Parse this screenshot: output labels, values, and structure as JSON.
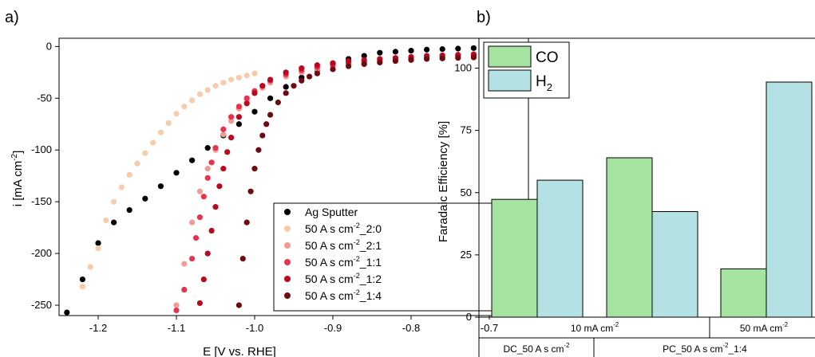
{
  "panels": {
    "a": {
      "panel_label": "a)",
      "legend_entries": [
        "Ag Sputter",
        "50 A s cm-2_2:0",
        "50 A s cm-2_2:1",
        "50 A s cm-2_1:1",
        "50 A s cm-2_1:2",
        "50 A s cm-2_1:4"
      ]
    },
    "b": {
      "panel_label": "b)",
      "group_row1": [
        "10 mA cm-2",
        "50 mA cm-2"
      ],
      "group_row2": [
        "DC_50 A s cm-2",
        "PC_50 A s cm-2_1:4"
      ]
    }
  },
  "chart_data": [
    {
      "type": "scatter",
      "xlabel": "E [V vs. RHE]",
      "ylabel": "i [mA cm-2]",
      "xlim": [
        -1.25,
        -0.65
      ],
      "ylim": [
        -260,
        8
      ],
      "x_ticks": [
        -1.2,
        -1.1,
        -1.0,
        -0.9,
        -0.8,
        -0.7
      ],
      "x_tick_labels": [
        "-1.2",
        "-1.1",
        "-1.0",
        "-0.9",
        "-0.8",
        "-0.7"
      ],
      "y_ticks": [
        0,
        -50,
        -100,
        -150,
        -200,
        -250
      ],
      "y_tick_labels": [
        "0",
        "-50",
        "-100",
        "-150",
        "-200",
        "-250"
      ],
      "legend_position": "bottom-right",
      "series": [
        {
          "name": "Ag Sputter",
          "color": "#000000",
          "x": [
            -1.24,
            -1.22,
            -1.2,
            -1.18,
            -1.16,
            -1.14,
            -1.12,
            -1.1,
            -1.08,
            -1.06,
            -1.04,
            -1.02,
            -1.0,
            -0.98,
            -0.96,
            -0.94,
            -0.92,
            -0.9,
            -0.88,
            -0.86,
            -0.84,
            -0.82,
            -0.8,
            -0.78,
            -0.76,
            -0.74,
            -0.72,
            -0.7,
            -0.68,
            -0.66
          ],
          "y": [
            -257,
            -225,
            -190,
            -170,
            -158,
            -147,
            -135,
            -122,
            -110,
            -98,
            -86,
            -75,
            -63,
            -50,
            -39,
            -30,
            -23,
            -17,
            -12,
            -9,
            -6,
            -5,
            -4,
            -3,
            -2.5,
            -2,
            -1.5,
            -1.2,
            -1,
            -1
          ]
        },
        {
          "name": "50 A s cm-2_2:0",
          "color": "#f7ccac",
          "x": [
            -1.22,
            -1.21,
            -1.2,
            -1.19,
            -1.18,
            -1.17,
            -1.16,
            -1.15,
            -1.14,
            -1.13,
            -1.12,
            -1.11,
            -1.1,
            -1.09,
            -1.08,
            -1.07,
            -1.06,
            -1.05,
            -1.04,
            -1.03,
            -1.02,
            -1.01,
            -1.0
          ],
          "y": [
            -232,
            -213,
            -195,
            -168,
            -150,
            -136,
            -124,
            -113,
            -103,
            -93,
            -83,
            -74,
            -65,
            -58,
            -52,
            -46,
            -42,
            -38,
            -35,
            -32,
            -30,
            -28,
            -26
          ]
        },
        {
          "name": "50 A s cm-2_2:1",
          "color": "#f29b92",
          "x": [
            -1.1,
            -1.09,
            -1.08,
            -1.07,
            -1.06,
            -1.05,
            -1.04,
            -1.03,
            -1.02,
            -1.01,
            -1.0,
            -0.99,
            -0.98,
            -0.96,
            -0.94,
            -0.92,
            -0.9,
            -0.88,
            -0.86,
            -0.84,
            -0.82,
            -0.8,
            -0.78,
            -0.76,
            -0.74,
            -0.72,
            -0.7,
            -0.68,
            -0.66
          ],
          "y": [
            -250,
            -210,
            -170,
            -140,
            -118,
            -100,
            -85,
            -72,
            -60,
            -52,
            -45,
            -40,
            -35,
            -29,
            -25,
            -22,
            -19,
            -17,
            -15,
            -14,
            -13,
            -12,
            -11,
            -10,
            -9,
            -8.5,
            -8,
            -7.5,
            -7
          ]
        },
        {
          "name": "50 A s cm-2_1:1",
          "color": "#e8334f",
          "x": [
            -1.1,
            -1.09,
            -1.08,
            -1.075,
            -1.07,
            -1.065,
            -1.06,
            -1.055,
            -1.05,
            -1.04,
            -1.03,
            -1.02,
            -1.01,
            -1.0,
            -0.99,
            -0.98,
            -0.96,
            -0.94,
            -0.92,
            -0.9,
            -0.88,
            -0.86,
            -0.84,
            -0.82,
            -0.8,
            -0.78,
            -0.76,
            -0.74,
            -0.72,
            -0.7,
            -0.68,
            -0.66
          ],
          "y": [
            -255,
            -235,
            -205,
            -185,
            -165,
            -145,
            -127,
            -112,
            -98,
            -80,
            -68,
            -58,
            -50,
            -43,
            -38,
            -33,
            -27,
            -23,
            -20,
            -18,
            -16,
            -15,
            -14,
            -13,
            -12,
            -11,
            -10,
            -9.5,
            -9,
            -8.5,
            -8,
            -7.5
          ]
        },
        {
          "name": "50 A s cm-2_1:2",
          "color": "#b80920",
          "x": [
            -1.07,
            -1.065,
            -1.06,
            -1.055,
            -1.05,
            -1.045,
            -1.04,
            -1.035,
            -1.03,
            -1.02,
            -1.01,
            -1.0,
            -0.99,
            -0.98,
            -0.96,
            -0.94,
            -0.92,
            -0.9,
            -0.88,
            -0.86,
            -0.84,
            -0.82,
            -0.8,
            -0.78,
            -0.76,
            -0.74,
            -0.72,
            -0.7,
            -0.68,
            -0.66
          ],
          "y": [
            -248,
            -225,
            -200,
            -178,
            -155,
            -135,
            -118,
            -102,
            -88,
            -68,
            -55,
            -45,
            -38,
            -32,
            -25,
            -21,
            -18,
            -16,
            -14,
            -13,
            -12,
            -11,
            -10,
            -9,
            -8.5,
            -8,
            -7.5,
            -7,
            -6.5,
            -6
          ]
        },
        {
          "name": "50 A s cm-2_1:4",
          "color": "#6e0a12",
          "x": [
            -1.02,
            -1.015,
            -1.01,
            -1.005,
            -1.0,
            -0.995,
            -0.99,
            -0.985,
            -0.98,
            -0.97,
            -0.96,
            -0.95,
            -0.94,
            -0.93,
            -0.92,
            -0.9,
            -0.88,
            -0.86,
            -0.84,
            -0.82,
            -0.8,
            -0.78,
            -0.76,
            -0.74,
            -0.72,
            -0.7,
            -0.68,
            -0.66
          ],
          "y": [
            -250,
            -205,
            -170,
            -140,
            -118,
            -100,
            -86,
            -75,
            -66,
            -54,
            -45,
            -38,
            -33,
            -29,
            -26,
            -22,
            -19,
            -17,
            -15.5,
            -14,
            -13,
            -12,
            -11.5,
            -11,
            -10.5,
            -10,
            -9.5,
            -9
          ]
        }
      ]
    },
    {
      "type": "bar",
      "ylabel": "Faradaic Efficiency [%]",
      "ylim": [
        0,
        112
      ],
      "y_ticks": [
        0,
        25,
        50,
        75,
        100
      ],
      "y_tick_labels": [
        "0",
        "25",
        "50",
        "75",
        "100"
      ],
      "legend_position": "top-left",
      "legend_entries": [
        "CO",
        "H2"
      ],
      "series": [
        {
          "name": "CO",
          "color": "#a6e3a1",
          "values": [
            47.3,
            64,
            19.4
          ]
        },
        {
          "name": "H2",
          "color": "#b4e2e4",
          "values": [
            55,
            42.4,
            94.4
          ]
        }
      ]
    }
  ]
}
